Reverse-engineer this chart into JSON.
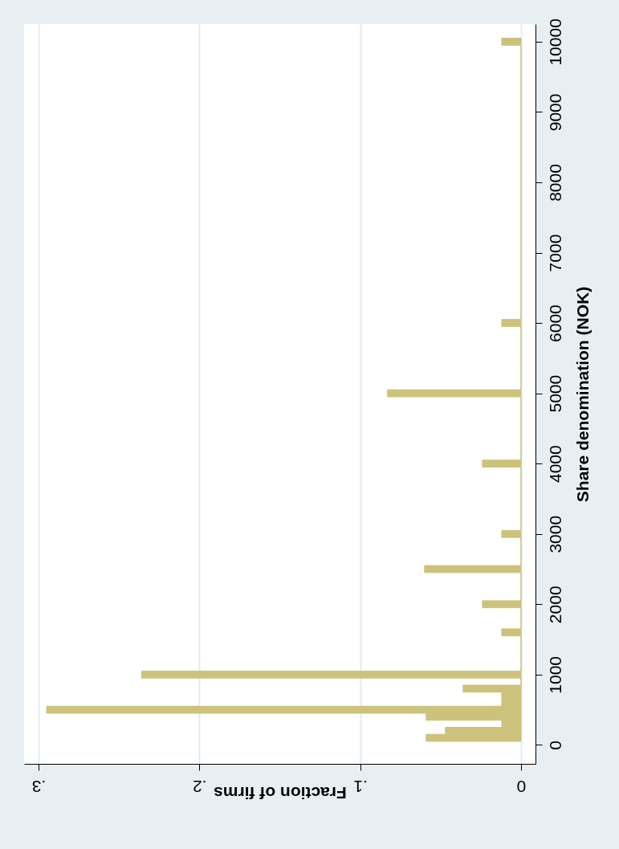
{
  "chart_data": {
    "type": "histogram",
    "orientation": "horizontal",
    "xlabel": "Fraction of firms",
    "ylabel": "Share denomination (NOK)",
    "bins": [
      50,
      150,
      250,
      350,
      450,
      550,
      650,
      750,
      850,
      950,
      1050,
      1150,
      1250,
      1350,
      1450,
      1550,
      1650,
      1750,
      1850,
      1950,
      2050,
      2150,
      2250,
      2350,
      2450,
      2550,
      2650,
      2750,
      2850,
      2950,
      3050,
      3150,
      3250,
      3350,
      3450,
      3550,
      3650,
      3750,
      3850,
      3950,
      4050,
      4150,
      4250,
      4350,
      4450,
      4550,
      4650,
      4750,
      4850,
      4950,
      5050,
      5150,
      5250,
      5350,
      5450,
      5550,
      5650,
      5750,
      5850,
      5950,
      6050,
      6150,
      6250,
      6350,
      6450,
      6550,
      6650,
      6750,
      6850,
      6950,
      7050,
      7150,
      7250,
      7350,
      7450,
      7550,
      7650,
      7750,
      7850,
      7950,
      8050,
      8150,
      8250,
      8350,
      8450,
      8550,
      8650,
      8750,
      8850,
      8950,
      9050,
      9150,
      9250,
      9350,
      9450,
      9550,
      9650,
      9750,
      9850,
      9950,
      10050
    ],
    "values": [
      0.059,
      0.047,
      0.012,
      0.059,
      0.295,
      0.012,
      0.012,
      0.036,
      0,
      0.236,
      0,
      0,
      0,
      0,
      0,
      0.012,
      0,
      0,
      0,
      0.024,
      0,
      0,
      0,
      0,
      0.06,
      0,
      0,
      0,
      0,
      0.012,
      0,
      0,
      0,
      0,
      0,
      0,
      0,
      0,
      0,
      0.024,
      0,
      0,
      0,
      0,
      0,
      0,
      0,
      0,
      0,
      0.083,
      0,
      0,
      0,
      0,
      0,
      0,
      0,
      0,
      0,
      0.012,
      0,
      0,
      0,
      0,
      0,
      0,
      0,
      0,
      0,
      0,
      0,
      0,
      0,
      0,
      0,
      0,
      0,
      0,
      0,
      0,
      0,
      0,
      0,
      0,
      0,
      0,
      0,
      0,
      0,
      0,
      0,
      0,
      0,
      0,
      0,
      0,
      0,
      0,
      0,
      0.012
    ],
    "color": "#ccc27c",
    "xlim": [
      0.309,
      -0.009
    ],
    "xticks": [
      {
        "value": 0.3,
        "label": ".3"
      },
      {
        "value": 0.2,
        "label": ".2"
      },
      {
        "value": 0.1,
        "label": ".1"
      },
      0
    ],
    "ylim": [
      -270,
      10250
    ],
    "yticks": [
      0,
      1000,
      2000,
      3000,
      4000,
      5000,
      6000,
      7000,
      8000,
      9000,
      10000
    ],
    "grid": "x"
  }
}
